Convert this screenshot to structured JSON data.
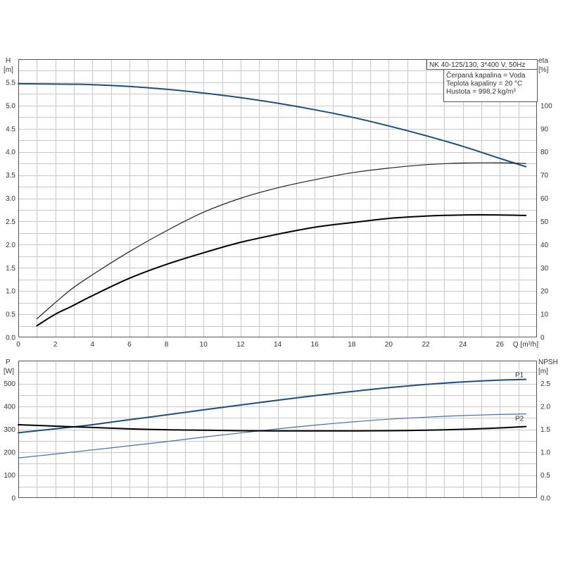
{
  "chart_data": [
    {
      "type": "line",
      "title": "NK 40-125/130, 3*400 V, 50Hz",
      "annotations": [
        "Čerpaná kapalina = Voda",
        "Teplota kapaliny = 20 °C",
        "Hustota = 998.2 kg/m³"
      ],
      "xlabel": "Q [m³/h]",
      "ylabel": "H",
      "ylabel_unit": "[m]",
      "y2label": "eta",
      "y2label_unit": "[%]",
      "xlim": [
        0,
        28
      ],
      "ylim": [
        0,
        6
      ],
      "y2lim": [
        0,
        120
      ],
      "x_ticks": [
        0,
        2,
        4,
        6,
        8,
        10,
        12,
        14,
        16,
        18,
        20,
        22,
        24,
        26
      ],
      "y_ticks": [
        "0.0",
        "0.5",
        "1.0",
        "1.5",
        "2.0",
        "2.5",
        "3.0",
        "3.5",
        "4.0",
        "4.5",
        "5.0",
        "5.5"
      ],
      "y2_ticks": [
        "0",
        "10",
        "20",
        "30",
        "40",
        "50",
        "60",
        "70",
        "80",
        "90",
        "100"
      ],
      "grid": true,
      "series": [
        {
          "axis": "y",
          "color": "#1f4e79",
          "x": [
            0,
            2.9,
            4,
            6,
            8,
            10,
            12,
            14,
            16,
            18,
            20,
            22,
            24,
            26,
            27.4
          ],
          "values": [
            5.47,
            5.46,
            5.45,
            5.41,
            5.35,
            5.27,
            5.17,
            5.05,
            4.91,
            4.75,
            4.56,
            4.35,
            4.12,
            3.86,
            3.68
          ]
        },
        {
          "axis": "y2",
          "color": "#222222",
          "x": [
            1.0,
            2,
            2.9,
            4,
            6,
            8,
            10,
            12,
            14,
            16,
            18,
            20,
            22,
            24,
            26,
            27.4
          ],
          "values": [
            8,
            15,
            21,
            27,
            37,
            46,
            54,
            60,
            64.5,
            68,
            71,
            73,
            74.5,
            75.2,
            75.3,
            75
          ]
        },
        {
          "axis": "y2",
          "color": "#000000",
          "x": [
            1.0,
            2,
            2.9,
            4,
            6,
            8,
            10,
            12,
            14,
            16,
            18,
            20,
            22,
            24,
            26,
            27.4
          ],
          "values": [
            5,
            10,
            13.5,
            18,
            25.5,
            31.5,
            36.5,
            41,
            44.5,
            47.5,
            49.5,
            51.3,
            52.3,
            52.8,
            52.8,
            52.6
          ]
        }
      ]
    },
    {
      "type": "line",
      "xlabel": "",
      "ylabel": "P",
      "ylabel_unit": "[W]",
      "y2label": "NPSH",
      "y2label_unit": "[m]",
      "xlim": [
        0,
        28
      ],
      "ylim": [
        0,
        600
      ],
      "y2lim": [
        0,
        3
      ],
      "y_ticks": [
        "0",
        "100",
        "200",
        "300",
        "400",
        "500"
      ],
      "y2_ticks": [
        "0.0",
        "0.5",
        "1.0",
        "1.5",
        "2.0",
        "2.5"
      ],
      "grid": true,
      "series": [
        {
          "name": "P1",
          "axis": "y",
          "color": "#1f4e79",
          "x": [
            0,
            2.9,
            4,
            6,
            8,
            10,
            12,
            14,
            16,
            18,
            20,
            22,
            24,
            26,
            27.4
          ],
          "values": [
            285,
            310,
            320,
            342,
            363,
            385,
            406,
            427,
            447,
            465,
            482,
            496,
            507,
            515,
            518
          ]
        },
        {
          "name": "P2",
          "axis": "y",
          "color": "#4a6e9a",
          "x": [
            0,
            2,
            4,
            6,
            8,
            10,
            12,
            14,
            16,
            18,
            20,
            22,
            24,
            26,
            27.4
          ],
          "values": [
            175,
            192,
            210,
            228,
            246,
            266,
            284,
            302,
            318,
            332,
            344,
            353,
            360,
            365,
            367
          ]
        },
        {
          "axis": "y2",
          "color": "#000000",
          "x": [
            0,
            2,
            4,
            6,
            8,
            10,
            12,
            14,
            16,
            18,
            20,
            22,
            24,
            26,
            27.4
          ],
          "values": [
            1.6,
            1.57,
            1.54,
            1.51,
            1.49,
            1.48,
            1.47,
            1.465,
            1.465,
            1.465,
            1.47,
            1.48,
            1.5,
            1.53,
            1.56
          ]
        }
      ]
    }
  ]
}
